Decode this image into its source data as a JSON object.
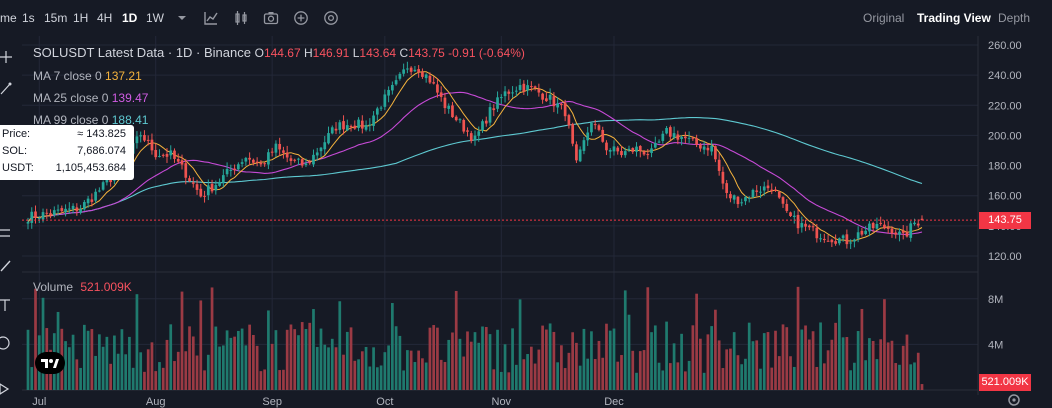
{
  "toolbar": {
    "timeframes": [
      {
        "label": "me"
      },
      {
        "label": "1s"
      },
      {
        "label": "15m"
      },
      {
        "label": "1H"
      },
      {
        "label": "4H"
      },
      {
        "label": "1D",
        "active": true
      },
      {
        "label": "1W"
      }
    ],
    "icons": [
      "chevron-down-icon",
      "indicators-icon",
      "chart-type-icon",
      "camera-icon",
      "add-icon",
      "compare-icon"
    ],
    "views": [
      {
        "label": "Original"
      },
      {
        "label": "Trading View",
        "active": true
      },
      {
        "label": "Depth"
      }
    ]
  },
  "legend": {
    "symbol_line": "SOLUSDT Latest Data · 1D · Binance",
    "ohlc": {
      "o_label": "O",
      "o": "144.67",
      "h_label": "H",
      "h": "146.91",
      "l_label": "L",
      "l": "143.64",
      "c_label": "C",
      "c": "143.75",
      "change": "-0.91 (-0.64%)"
    },
    "ma7": {
      "label": "MA 7 close 0",
      "value": "137.21",
      "color": "#f5b33d"
    },
    "ma25": {
      "label": "MA 25 close 0",
      "value": "139.47",
      "color": "#c64ad6"
    },
    "ma99": {
      "label": "MA 99 close 0",
      "value": "188.41",
      "color": "#5ec9d1"
    }
  },
  "tooltip": {
    "price_label": "Price:",
    "price_value": "≈ 143.825",
    "sol_label": "SOL:",
    "sol_value": "7,686.074",
    "usdt_label": "USDT:",
    "usdt_value": "1,105,453.684"
  },
  "volume_legend": {
    "label": "Volume",
    "value": "521.009K"
  },
  "last_price": "143.75",
  "last_volume": "521.009K",
  "colors": {
    "up": "#26a69a",
    "down": "#ef5350",
    "background": "#161a25",
    "grid": "#232838",
    "price_line": "#f23645"
  },
  "chart_data": {
    "type": "candlestick",
    "x_ticks": [
      "Jul",
      "Aug",
      "Sep",
      "Oct",
      "Nov",
      "Dec"
    ],
    "price_ticks": [
      120,
      140,
      160,
      180,
      200,
      220,
      240,
      260
    ],
    "price_tick_labels": [
      "120.00",
      "140.00",
      "160.00",
      "180.00",
      "200.00",
      "220.00",
      "240.00",
      "260.00"
    ],
    "price_range": [
      112,
      266
    ],
    "volume_ticks": [
      4000000,
      8000000
    ],
    "volume_tick_labels": [
      "4M",
      "8M"
    ],
    "volume_range": [
      0,
      10000000
    ],
    "close_keypoints": [
      [
        0,
        146
      ],
      [
        8,
        149
      ],
      [
        14,
        152
      ],
      [
        20,
        166
      ],
      [
        26,
        183
      ],
      [
        30,
        201
      ],
      [
        34,
        188
      ],
      [
        38,
        187
      ],
      [
        42,
        175
      ],
      [
        46,
        160
      ],
      [
        50,
        168
      ],
      [
        54,
        177
      ],
      [
        58,
        186
      ],
      [
        62,
        180
      ],
      [
        66,
        192
      ],
      [
        70,
        183
      ],
      [
        74,
        180
      ],
      [
        78,
        193
      ],
      [
        82,
        206
      ],
      [
        86,
        208
      ],
      [
        90,
        206
      ],
      [
        94,
        221
      ],
      [
        98,
        234
      ],
      [
        101,
        246
      ],
      [
        104,
        245
      ],
      [
        107,
        237
      ],
      [
        111,
        220
      ],
      [
        115,
        208
      ],
      [
        119,
        197
      ],
      [
        123,
        216
      ],
      [
        127,
        228
      ],
      [
        131,
        233
      ],
      [
        135,
        230
      ],
      [
        139,
        224
      ],
      [
        143,
        216
      ],
      [
        146,
        180
      ],
      [
        150,
        210
      ],
      [
        154,
        192
      ],
      [
        158,
        188
      ],
      [
        162,
        191
      ],
      [
        166,
        188
      ],
      [
        170,
        202
      ],
      [
        174,
        199
      ],
      [
        178,
        194
      ],
      [
        182,
        192
      ],
      [
        186,
        160
      ],
      [
        190,
        157
      ],
      [
        194,
        164
      ],
      [
        198,
        166
      ],
      [
        202,
        147
      ],
      [
        206,
        140
      ],
      [
        210,
        135
      ],
      [
        214,
        132
      ],
      [
        218,
        130
      ],
      [
        222,
        136
      ],
      [
        226,
        140
      ],
      [
        230,
        138
      ],
      [
        233,
        132
      ],
      [
        236,
        142
      ],
      [
        238,
        143.75
      ]
    ],
    "ma_last_values": {
      "ma7": 137.21,
      "ma25": 139.47,
      "ma99": 188.41
    },
    "last_volume": 521009
  }
}
